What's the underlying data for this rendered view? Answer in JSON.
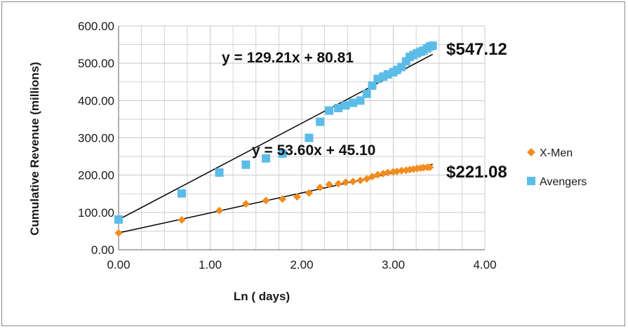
{
  "chart_data": {
    "type": "scatter",
    "xlabel": "Ln ( days)",
    "ylabel": "Cumulative Revenue (millions)",
    "xlim": [
      0,
      4
    ],
    "ylim": [
      0,
      600
    ],
    "x_ticks": [
      "0.00",
      "1.00",
      "2.00",
      "3.00",
      "4.00"
    ],
    "y_ticks": [
      "0.00",
      "100.00",
      "200.00",
      "300.00",
      "400.00",
      "500.00",
      "600.00"
    ],
    "grid": true,
    "legend_position": "right",
    "series": [
      {
        "name": "X-Men",
        "marker": "diamond",
        "color": "#f28c1e",
        "points": [
          [
            0.0,
            45
          ],
          [
            0.69,
            80
          ],
          [
            1.1,
            105
          ],
          [
            1.39,
            123
          ],
          [
            1.61,
            132
          ],
          [
            1.79,
            136
          ],
          [
            1.95,
            142
          ],
          [
            2.08,
            152
          ],
          [
            2.2,
            167
          ],
          [
            2.3,
            175
          ],
          [
            2.4,
            177
          ],
          [
            2.48,
            181
          ],
          [
            2.56,
            183
          ],
          [
            2.64,
            186
          ],
          [
            2.71,
            190
          ],
          [
            2.77,
            196
          ],
          [
            2.83,
            201
          ],
          [
            2.89,
            204
          ],
          [
            2.94,
            207
          ],
          [
            3.0,
            209
          ],
          [
            3.04,
            210
          ],
          [
            3.09,
            212
          ],
          [
            3.14,
            213
          ],
          [
            3.18,
            215
          ],
          [
            3.22,
            216
          ],
          [
            3.26,
            218
          ],
          [
            3.3,
            219
          ],
          [
            3.33,
            220
          ],
          [
            3.37,
            221
          ],
          [
            3.4,
            221.08
          ]
        ],
        "trendline": {
          "slope": 53.6,
          "intercept": 45.1,
          "x_range": [
            0,
            3.43
          ],
          "equation": "y = 53.60x + 45.10"
        },
        "final_label": "$221.08"
      },
      {
        "name": "Avengers",
        "marker": "square",
        "color": "#5cbce8",
        "points": [
          [
            0.0,
            81
          ],
          [
            0.69,
            151
          ],
          [
            1.1,
            207
          ],
          [
            1.39,
            228
          ],
          [
            1.61,
            245
          ],
          [
            1.79,
            258
          ],
          [
            2.08,
            300
          ],
          [
            2.2,
            343
          ],
          [
            2.3,
            373
          ],
          [
            2.4,
            380
          ],
          [
            2.48,
            387
          ],
          [
            2.56,
            394
          ],
          [
            2.64,
            400
          ],
          [
            2.71,
            418
          ],
          [
            2.77,
            440
          ],
          [
            2.83,
            458
          ],
          [
            2.89,
            464
          ],
          [
            2.94,
            470
          ],
          [
            3.0,
            476
          ],
          [
            3.04,
            482
          ],
          [
            3.09,
            490
          ],
          [
            3.14,
            505
          ],
          [
            3.18,
            517
          ],
          [
            3.22,
            522
          ],
          [
            3.26,
            527
          ],
          [
            3.3,
            531
          ],
          [
            3.33,
            534
          ],
          [
            3.37,
            540
          ],
          [
            3.4,
            545
          ],
          [
            3.43,
            547.12
          ]
        ],
        "trendline": {
          "slope": 129.21,
          "intercept": 80.81,
          "x_range": [
            0,
            3.43
          ],
          "equation": "y = 129.21x + 80.81"
        },
        "final_label": "$547.12"
      }
    ],
    "legend": [
      "X-Men",
      "Avengers"
    ]
  },
  "style": {
    "grid_color": "#c8c8c8",
    "axis_color": "#7f7f7f",
    "trendline_color": "#000000"
  }
}
